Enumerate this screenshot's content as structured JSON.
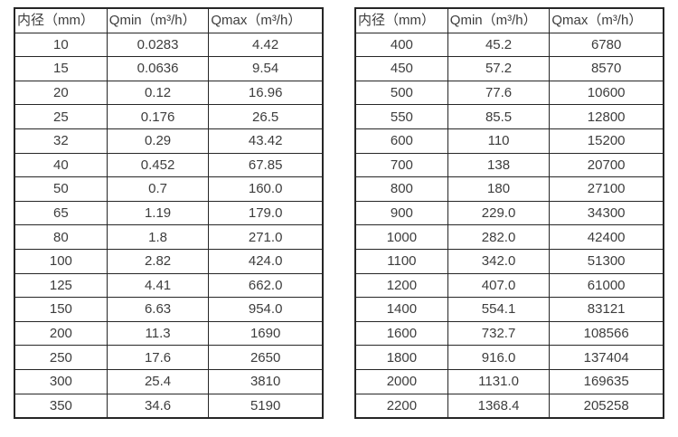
{
  "page": {
    "background": "#ffffff",
    "text_color": "#3d3d3d",
    "border_color": "#262626"
  },
  "tables": [
    {
      "name": "flow-table-small-diameters",
      "headers": [
        "内径（mm）",
        "Qmin（m³/h）",
        "Qmax（m³/h）"
      ],
      "rows": [
        [
          "10",
          "0.0283",
          "4.42"
        ],
        [
          "15",
          "0.0636",
          "9.54"
        ],
        [
          "20",
          "0.12",
          "16.96"
        ],
        [
          "25",
          "0.176",
          "26.5"
        ],
        [
          "32",
          "0.29",
          "43.42"
        ],
        [
          "40",
          "0.452",
          "67.85"
        ],
        [
          "50",
          "0.7",
          "160.0"
        ],
        [
          "65",
          "1.19",
          "179.0"
        ],
        [
          "80",
          "1.8",
          "271.0"
        ],
        [
          "100",
          "2.82",
          "424.0"
        ],
        [
          "125",
          "4.41",
          "662.0"
        ],
        [
          "150",
          "6.63",
          "954.0"
        ],
        [
          "200",
          "11.3",
          "1690"
        ],
        [
          "250",
          "17.6",
          "2650"
        ],
        [
          "300",
          "25.4",
          "3810"
        ],
        [
          "350",
          "34.6",
          "5190"
        ]
      ]
    },
    {
      "name": "flow-table-large-diameters",
      "headers": [
        "内径（mm）",
        "Qmin（m³/h）",
        "Qmax（m³/h）"
      ],
      "rows": [
        [
          "400",
          "45.2",
          "6780"
        ],
        [
          "450",
          "57.2",
          "8570"
        ],
        [
          "500",
          "77.6",
          "10600"
        ],
        [
          "550",
          "85.5",
          "12800"
        ],
        [
          "600",
          "110",
          "15200"
        ],
        [
          "700",
          "138",
          "20700"
        ],
        [
          "800",
          "180",
          "27100"
        ],
        [
          "900",
          "229.0",
          "34300"
        ],
        [
          "1000",
          "282.0",
          "42400"
        ],
        [
          "1100",
          "342.0",
          "51300"
        ],
        [
          "1200",
          "407.0",
          "61000"
        ],
        [
          "1400",
          "554.1",
          "83121"
        ],
        [
          "1600",
          "732.7",
          "108566"
        ],
        [
          "1800",
          "916.0",
          "137404"
        ],
        [
          "2000",
          "1131.0",
          "169635"
        ],
        [
          "2200",
          "1368.4",
          "205258"
        ]
      ]
    }
  ]
}
